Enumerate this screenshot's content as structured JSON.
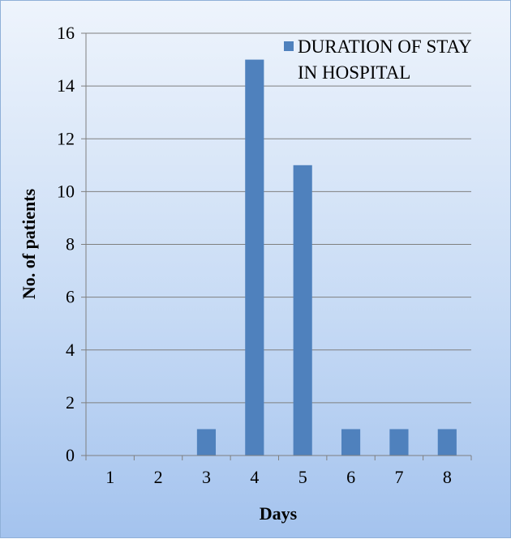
{
  "chart_data": {
    "type": "bar",
    "categories": [
      "1",
      "2",
      "3",
      "4",
      "5",
      "6",
      "7",
      "8"
    ],
    "series": [
      {
        "name": "DURATION OF STAY IN HOSPITAL",
        "values": [
          0,
          0,
          1,
          15,
          11,
          1,
          1,
          1
        ],
        "color": "#4f81bd"
      }
    ],
    "title": "",
    "xlabel": "Days",
    "ylabel": "No. of patients",
    "ylim": [
      0,
      16
    ],
    "yticks": [
      "0",
      "2",
      "4",
      "6",
      "8",
      "10",
      "12",
      "14",
      "16"
    ],
    "grid": true,
    "legend_position": "top-right",
    "legend_lines": [
      "DURATION OF STAY",
      "IN HOSPITAL"
    ]
  }
}
